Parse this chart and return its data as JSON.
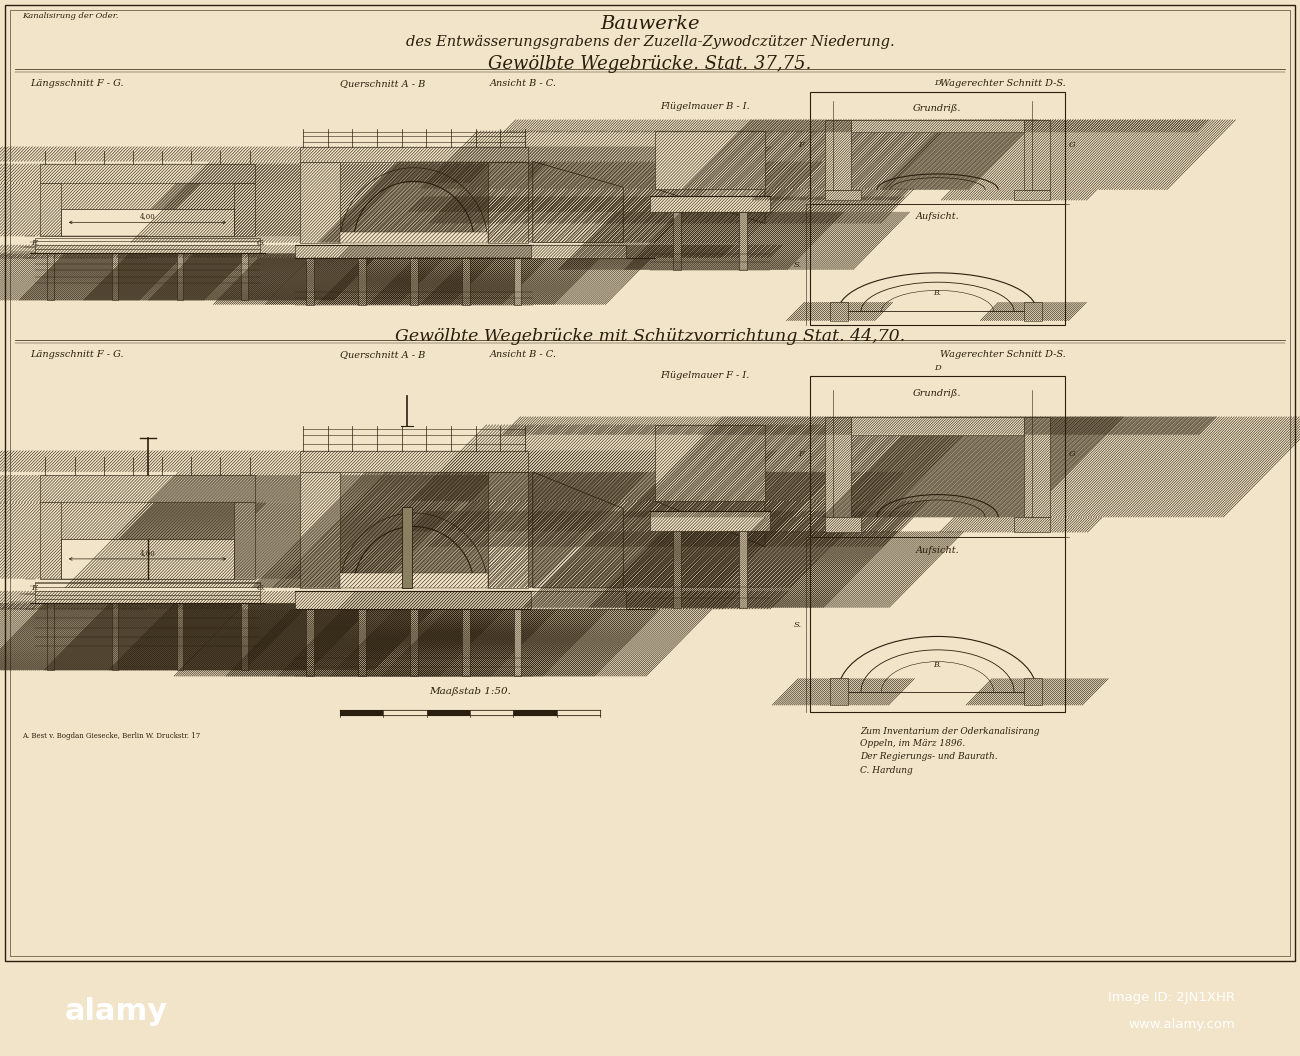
{
  "paper_color": "#f2e4c8",
  "ink_color": "#2a1f0e",
  "thin_ink": "#3a2a10",
  "bg_color": "#f2e4c8",
  "title1": "Bauwerke",
  "title2": "des Entwässerungsgrabens der Zuzella-Zywodczützer Niederung.",
  "title3": "Gewölbte Wegebrücke. Stat. 37,75.",
  "subtitle": "Gewölbte Wegebrücke mit Schützvorrichtung Stat. 44,70.",
  "corner": "Kanalisirung der Oder.",
  "scale_txt": "Maaßstab 1:50.",
  "lbl_lang1": "Längsschnitt F - G.",
  "lbl_quer1": "Querschnitt A - B",
  "lbl_ans1": "Ansicht B - C.",
  "lbl_flug1": "Flügelmauer B - I.",
  "lbl_wag1": "Wagerechter Schnitt D-S.",
  "lbl_lang2": "Längsschnitt F - G.",
  "lbl_quer2": "Querschnitt A - B",
  "lbl_ans2": "Ansicht B - C.",
  "lbl_flug2": "Flügelmauer F - I.",
  "lbl_wag2": "Wagerechter Schnitt D-S.",
  "grundriss": "Grundriß.",
  "aufsicht": "Aufsicht.",
  "bl_text": "A. Best v. Bogdan Giesecke, Berlin W. Druckstr. 17",
  "br1": "Zum Inventarium der Oderkanalisirang",
  "br2": "Oppeln, im März 1896.",
  "br3": "Der Regierungs- und Baurath.",
  "br4": "C. Hardung",
  "alamy_bg": "#000000",
  "alamy_fg": "#ffffff"
}
